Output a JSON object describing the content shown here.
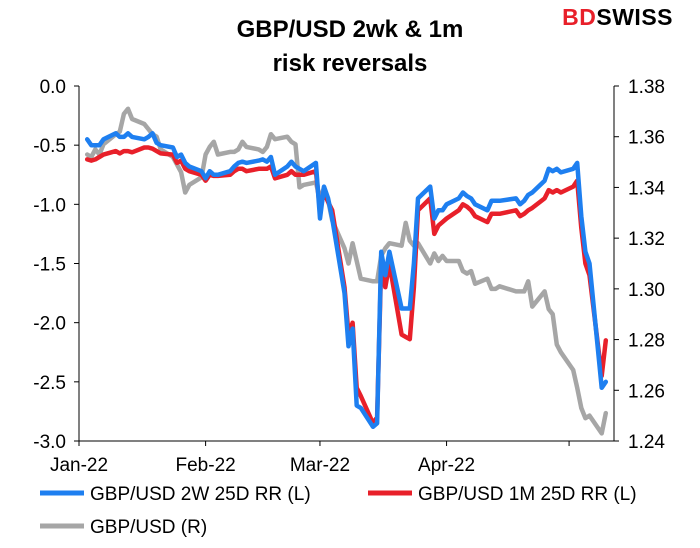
{
  "brand": {
    "logo_part1": "BD",
    "logo_part2": "SWISS"
  },
  "chart_data": {
    "type": "line",
    "title_line1": "GBP/USD 2wk & 1m",
    "title_line2": "risk reversals",
    "x_tick_labels": [
      "Jan-22",
      "Feb-22",
      "Mar-22",
      "Apr-22"
    ],
    "y_left": {
      "ylim": [
        -3.0,
        0.0
      ],
      "ticks": [
        "0.0",
        "-0.5",
        "-1.0",
        "-1.5",
        "-2.0",
        "-2.5",
        "-3.0"
      ]
    },
    "y_right": {
      "ylim": [
        1.24,
        1.38
      ],
      "ticks": [
        "1.38",
        "1.36",
        "1.34",
        "1.32",
        "1.30",
        "1.28",
        "1.26",
        "1.24"
      ]
    },
    "grid": false,
    "legend": "bottom",
    "series": [
      {
        "name": "GBP/USD 2W 25D RR (L)",
        "axis": "left",
        "color": "#1e7ff0",
        "points": [
          [
            "2022-01-03",
            -0.45
          ],
          [
            "2022-01-04",
            -0.5
          ],
          [
            "2022-01-05",
            -0.5
          ],
          [
            "2022-01-06",
            -0.5
          ],
          [
            "2022-01-07",
            -0.45
          ],
          [
            "2022-01-10",
            -0.4
          ],
          [
            "2022-01-11",
            -0.43
          ],
          [
            "2022-01-12",
            -0.43
          ],
          [
            "2022-01-13",
            -0.4
          ],
          [
            "2022-01-14",
            -0.43
          ],
          [
            "2022-01-17",
            -0.45
          ],
          [
            "2022-01-18",
            -0.43
          ],
          [
            "2022-01-19",
            -0.4
          ],
          [
            "2022-01-20",
            -0.48
          ],
          [
            "2022-01-21",
            -0.5
          ],
          [
            "2022-01-24",
            -0.52
          ],
          [
            "2022-01-25",
            -0.6
          ],
          [
            "2022-01-26",
            -0.58
          ],
          [
            "2022-01-27",
            -0.65
          ],
          [
            "2022-01-28",
            -0.68
          ],
          [
            "2022-01-31",
            -0.72
          ],
          [
            "2022-02-01",
            -0.78
          ],
          [
            "2022-02-02",
            -0.72
          ],
          [
            "2022-02-03",
            -0.75
          ],
          [
            "2022-02-04",
            -0.75
          ],
          [
            "2022-02-07",
            -0.72
          ],
          [
            "2022-02-08",
            -0.68
          ],
          [
            "2022-02-09",
            -0.65
          ],
          [
            "2022-02-10",
            -0.64
          ],
          [
            "2022-02-11",
            -0.65
          ],
          [
            "2022-02-14",
            -0.63
          ],
          [
            "2022-02-15",
            -0.62
          ],
          [
            "2022-02-16",
            -0.64
          ],
          [
            "2022-02-17",
            -0.6
          ],
          [
            "2022-02-18",
            -0.75
          ],
          [
            "2022-02-21",
            -0.68
          ],
          [
            "2022-02-22",
            -0.64
          ],
          [
            "2022-02-23",
            -0.68
          ],
          [
            "2022-02-24",
            -0.7
          ],
          [
            "2022-02-25",
            -0.72
          ],
          [
            "2022-02-28",
            -0.65
          ],
          [
            "2022-03-01",
            -1.12
          ],
          [
            "2022-03-02",
            -0.85
          ],
          [
            "2022-03-03",
            -0.95
          ],
          [
            "2022-03-04",
            -1.12
          ],
          [
            "2022-03-07",
            -1.75
          ],
          [
            "2022-03-08",
            -2.2
          ],
          [
            "2022-03-09",
            -2.05
          ],
          [
            "2022-03-10",
            -2.7
          ],
          [
            "2022-03-11",
            -2.72
          ],
          [
            "2022-03-14",
            -2.88
          ],
          [
            "2022-03-15",
            -2.85
          ],
          [
            "2022-03-16",
            -1.4
          ],
          [
            "2022-03-17",
            -1.6
          ],
          [
            "2022-03-18",
            -1.4
          ],
          [
            "2022-03-21",
            -1.88
          ],
          [
            "2022-03-22",
            -1.88
          ],
          [
            "2022-03-23",
            -1.88
          ],
          [
            "2022-03-24",
            -1.5
          ],
          [
            "2022-03-25",
            -0.95
          ],
          [
            "2022-03-28",
            -0.85
          ],
          [
            "2022-03-29",
            -1.12
          ],
          [
            "2022-03-30",
            -1.05
          ],
          [
            "2022-03-31",
            -1.05
          ],
          [
            "2022-04-01",
            -1.0
          ],
          [
            "2022-04-04",
            -0.95
          ],
          [
            "2022-04-05",
            -0.9
          ],
          [
            "2022-04-06",
            -0.93
          ],
          [
            "2022-04-07",
            -0.95
          ],
          [
            "2022-04-08",
            -1.0
          ],
          [
            "2022-04-11",
            -1.05
          ],
          [
            "2022-04-12",
            -0.97
          ],
          [
            "2022-04-13",
            -0.97
          ],
          [
            "2022-04-14",
            -0.97
          ],
          [
            "2022-04-18",
            -0.95
          ],
          [
            "2022-04-19",
            -1.0
          ],
          [
            "2022-04-20",
            -0.97
          ],
          [
            "2022-04-21",
            -0.92
          ],
          [
            "2022-04-22",
            -0.9
          ],
          [
            "2022-04-25",
            -0.8
          ],
          [
            "2022-04-26",
            -0.7
          ],
          [
            "2022-04-27",
            -0.72
          ],
          [
            "2022-04-28",
            -0.7
          ],
          [
            "2022-04-29",
            -0.73
          ],
          [
            "2022-05-02",
            -0.7
          ],
          [
            "2022-05-03",
            -0.65
          ],
          [
            "2022-05-04",
            -1.1
          ],
          [
            "2022-05-05",
            -1.4
          ],
          [
            "2022-05-06",
            -1.5
          ],
          [
            "2022-05-09",
            -2.55
          ],
          [
            "2022-05-10",
            -2.5
          ]
        ]
      },
      {
        "name": "GBP/USD 1M 25D RR (L)",
        "axis": "left",
        "color": "#e8202a",
        "points": [
          [
            "2022-01-03",
            -0.62
          ],
          [
            "2022-01-04",
            -0.63
          ],
          [
            "2022-01-05",
            -0.62
          ],
          [
            "2022-01-06",
            -0.6
          ],
          [
            "2022-01-07",
            -0.58
          ],
          [
            "2022-01-10",
            -0.55
          ],
          [
            "2022-01-11",
            -0.57
          ],
          [
            "2022-01-12",
            -0.55
          ],
          [
            "2022-01-13",
            -0.55
          ],
          [
            "2022-01-14",
            -0.56
          ],
          [
            "2022-01-17",
            -0.52
          ],
          [
            "2022-01-18",
            -0.52
          ],
          [
            "2022-01-19",
            -0.53
          ],
          [
            "2022-01-20",
            -0.55
          ],
          [
            "2022-01-21",
            -0.57
          ],
          [
            "2022-01-24",
            -0.58
          ],
          [
            "2022-01-25",
            -0.65
          ],
          [
            "2022-01-26",
            -0.63
          ],
          [
            "2022-01-27",
            -0.7
          ],
          [
            "2022-01-28",
            -0.72
          ],
          [
            "2022-01-31",
            -0.75
          ],
          [
            "2022-02-01",
            -0.8
          ],
          [
            "2022-02-02",
            -0.75
          ],
          [
            "2022-02-03",
            -0.76
          ],
          [
            "2022-02-04",
            -0.76
          ],
          [
            "2022-02-07",
            -0.75
          ],
          [
            "2022-02-08",
            -0.72
          ],
          [
            "2022-02-09",
            -0.7
          ],
          [
            "2022-02-10",
            -0.7
          ],
          [
            "2022-02-11",
            -0.72
          ],
          [
            "2022-02-14",
            -0.7
          ],
          [
            "2022-02-15",
            -0.7
          ],
          [
            "2022-02-16",
            -0.7
          ],
          [
            "2022-02-17",
            -0.68
          ],
          [
            "2022-02-18",
            -0.78
          ],
          [
            "2022-02-21",
            -0.75
          ],
          [
            "2022-02-22",
            -0.72
          ],
          [
            "2022-02-23",
            -0.75
          ],
          [
            "2022-02-24",
            -0.75
          ],
          [
            "2022-02-25",
            -0.75
          ],
          [
            "2022-02-28",
            -0.72
          ],
          [
            "2022-03-01",
            -1.05
          ],
          [
            "2022-03-02",
            -0.9
          ],
          [
            "2022-03-03",
            -0.98
          ],
          [
            "2022-03-04",
            -1.05
          ],
          [
            "2022-03-07",
            -1.7
          ],
          [
            "2022-03-08",
            -2.1
          ],
          [
            "2022-03-09",
            -2.0
          ],
          [
            "2022-03-10",
            -2.55
          ],
          [
            "2022-03-11",
            -2.62
          ],
          [
            "2022-03-14",
            -2.85
          ],
          [
            "2022-03-15",
            -2.8
          ],
          [
            "2022-03-16",
            -1.5
          ],
          [
            "2022-03-17",
            -1.7
          ],
          [
            "2022-03-18",
            -1.5
          ],
          [
            "2022-03-21",
            -2.1
          ],
          [
            "2022-03-22",
            -2.12
          ],
          [
            "2022-03-23",
            -2.14
          ],
          [
            "2022-03-24",
            -1.7
          ],
          [
            "2022-03-25",
            -1.05
          ],
          [
            "2022-03-28",
            -0.95
          ],
          [
            "2022-03-29",
            -1.25
          ],
          [
            "2022-03-30",
            -1.18
          ],
          [
            "2022-03-31",
            -1.15
          ],
          [
            "2022-04-01",
            -1.12
          ],
          [
            "2022-04-04",
            -1.05
          ],
          [
            "2022-04-05",
            -1.0
          ],
          [
            "2022-04-06",
            -1.02
          ],
          [
            "2022-04-07",
            -1.05
          ],
          [
            "2022-04-08",
            -1.1
          ],
          [
            "2022-04-11",
            -1.15
          ],
          [
            "2022-04-12",
            -1.08
          ],
          [
            "2022-04-13",
            -1.08
          ],
          [
            "2022-04-14",
            -1.08
          ],
          [
            "2022-04-18",
            -1.05
          ],
          [
            "2022-04-19",
            -1.1
          ],
          [
            "2022-04-20",
            -1.08
          ],
          [
            "2022-04-21",
            -1.05
          ],
          [
            "2022-04-22",
            -1.03
          ],
          [
            "2022-04-25",
            -0.95
          ],
          [
            "2022-04-26",
            -0.88
          ],
          [
            "2022-04-27",
            -0.9
          ],
          [
            "2022-04-28",
            -0.88
          ],
          [
            "2022-04-29",
            -0.9
          ],
          [
            "2022-05-02",
            -0.85
          ],
          [
            "2022-05-03",
            -0.8
          ],
          [
            "2022-05-04",
            -1.2
          ],
          [
            "2022-05-05",
            -1.5
          ],
          [
            "2022-05-06",
            -1.6
          ],
          [
            "2022-05-09",
            -2.45
          ],
          [
            "2022-05-10",
            -2.15
          ]
        ]
      },
      {
        "name": "GBP/USD (R)",
        "axis": "right",
        "color": "#a6a6a6",
        "points": [
          [
            "2022-01-03",
            1.353
          ],
          [
            "2022-01-04",
            1.352
          ],
          [
            "2022-01-05",
            1.355
          ],
          [
            "2022-01-06",
            1.353
          ],
          [
            "2022-01-07",
            1.357
          ],
          [
            "2022-01-10",
            1.361
          ],
          [
            "2022-01-11",
            1.362
          ],
          [
            "2022-01-12",
            1.369
          ],
          [
            "2022-01-13",
            1.371
          ],
          [
            "2022-01-14",
            1.367
          ],
          [
            "2022-01-17",
            1.365
          ],
          [
            "2022-01-18",
            1.363
          ],
          [
            "2022-01-19",
            1.361
          ],
          [
            "2022-01-20",
            1.36
          ],
          [
            "2022-01-21",
            1.355
          ],
          [
            "2022-01-24",
            1.352
          ],
          [
            "2022-01-25",
            1.349
          ],
          [
            "2022-01-26",
            1.346
          ],
          [
            "2022-01-27",
            1.338
          ],
          [
            "2022-01-28",
            1.341
          ],
          [
            "2022-01-31",
            1.344
          ],
          [
            "2022-02-01",
            1.353
          ],
          [
            "2022-02-02",
            1.356
          ],
          [
            "2022-02-03",
            1.358
          ],
          [
            "2022-02-04",
            1.353
          ],
          [
            "2022-02-07",
            1.354
          ],
          [
            "2022-02-08",
            1.354
          ],
          [
            "2022-02-09",
            1.355
          ],
          [
            "2022-02-10",
            1.358
          ],
          [
            "2022-02-11",
            1.356
          ],
          [
            "2022-02-14",
            1.355
          ],
          [
            "2022-02-15",
            1.354
          ],
          [
            "2022-02-16",
            1.356
          ],
          [
            "2022-02-17",
            1.361
          ],
          [
            "2022-02-18",
            1.359
          ],
          [
            "2022-02-21",
            1.36
          ],
          [
            "2022-02-22",
            1.358
          ],
          [
            "2022-02-23",
            1.357
          ],
          [
            "2022-02-24",
            1.34
          ],
          [
            "2022-02-25",
            1.341
          ],
          [
            "2022-02-28",
            1.342
          ],
          [
            "2022-03-01",
            1.335
          ],
          [
            "2022-03-02",
            1.34
          ],
          [
            "2022-03-03",
            1.335
          ],
          [
            "2022-03-04",
            1.327
          ],
          [
            "2022-03-07",
            1.316
          ],
          [
            "2022-03-08",
            1.31
          ],
          [
            "2022-03-09",
            1.318
          ],
          [
            "2022-03-10",
            1.311
          ],
          [
            "2022-03-11",
            1.304
          ],
          [
            "2022-03-14",
            1.303
          ],
          [
            "2022-03-15",
            1.303
          ],
          [
            "2022-03-16",
            1.313
          ],
          [
            "2022-03-17",
            1.316
          ],
          [
            "2022-03-18",
            1.318
          ],
          [
            "2022-03-21",
            1.317
          ],
          [
            "2022-03-22",
            1.326
          ],
          [
            "2022-03-23",
            1.319
          ],
          [
            "2022-03-24",
            1.317
          ],
          [
            "2022-03-25",
            1.318
          ],
          [
            "2022-03-28",
            1.31
          ],
          [
            "2022-03-29",
            1.314
          ],
          [
            "2022-03-30",
            1.311
          ],
          [
            "2022-03-31",
            1.313
          ],
          [
            "2022-04-01",
            1.311
          ],
          [
            "2022-04-04",
            1.311
          ],
          [
            "2022-04-05",
            1.307
          ],
          [
            "2022-04-06",
            1.306
          ],
          [
            "2022-04-07",
            1.307
          ],
          [
            "2022-04-08",
            1.302
          ],
          [
            "2022-04-11",
            1.304
          ],
          [
            "2022-04-12",
            1.3
          ],
          [
            "2022-04-13",
            1.3
          ],
          [
            "2022-04-14",
            1.301
          ],
          [
            "2022-04-18",
            1.299
          ],
          [
            "2022-04-19",
            1.299
          ],
          [
            "2022-04-20",
            1.299
          ],
          [
            "2022-04-21",
            1.303
          ],
          [
            "2022-04-22",
            1.293
          ],
          [
            "2022-04-25",
            1.299
          ],
          [
            "2022-04-26",
            1.292
          ],
          [
            "2022-04-27",
            1.29
          ],
          [
            "2022-04-28",
            1.278
          ],
          [
            "2022-04-29",
            1.275
          ],
          [
            "2022-05-02",
            1.268
          ],
          [
            "2022-05-03",
            1.261
          ],
          [
            "2022-05-04",
            1.253
          ],
          [
            "2022-05-05",
            1.249
          ],
          [
            "2022-05-06",
            1.25
          ],
          [
            "2022-05-09",
            1.243
          ],
          [
            "2022-05-10",
            1.251
          ]
        ]
      }
    ]
  }
}
